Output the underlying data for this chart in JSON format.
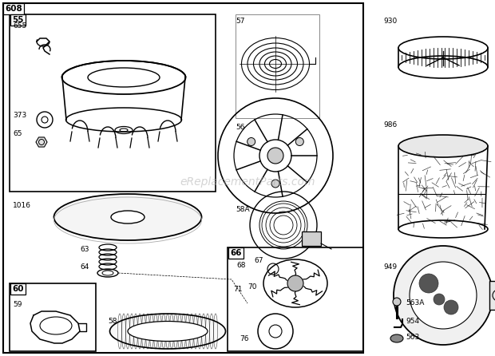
{
  "bg_color": "#ffffff",
  "watermark": "eReplacementParts.com",
  "fig_w": 6.2,
  "fig_h": 4.46,
  "dpi": 100
}
